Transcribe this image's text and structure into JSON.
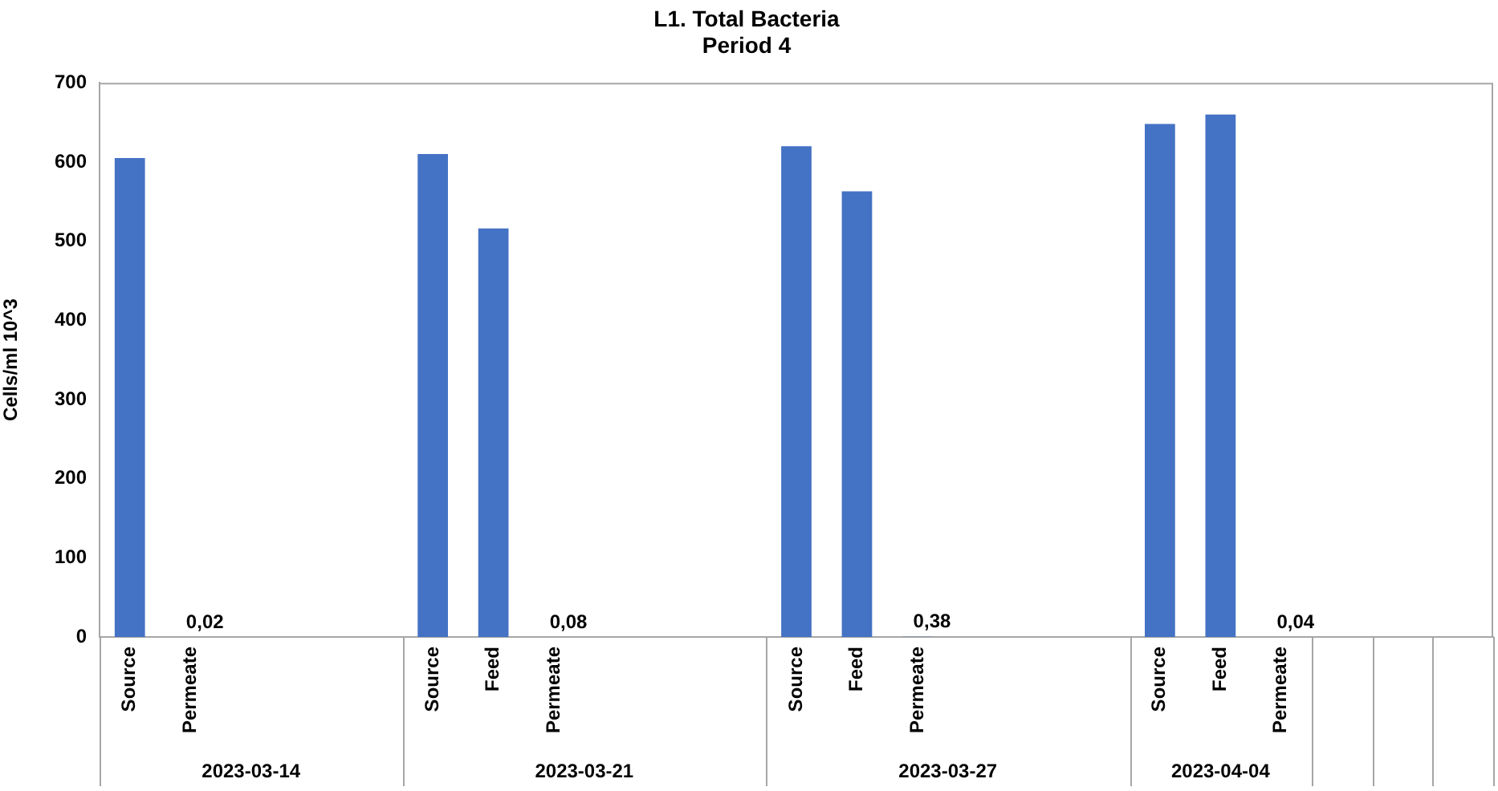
{
  "chart_data": {
    "type": "bar",
    "title": "L1. Total Bacteria",
    "subtitle": "Period 4",
    "ylabel": "Cells/ml 10^3",
    "categories": [
      "Source",
      "Permeate",
      null,
      null,
      null,
      "Source",
      "Feed",
      "Permeate",
      null,
      null,
      null,
      "Source",
      "Feed",
      "Permeate",
      null,
      null,
      null,
      "Source",
      "Feed",
      "Permeate",
      null,
      null,
      null
    ],
    "values": [
      605,
      0.02,
      null,
      null,
      null,
      610,
      516,
      0.08,
      null,
      null,
      null,
      620,
      563,
      0.38,
      null,
      null,
      null,
      648,
      660,
      0.04,
      null,
      null,
      null
    ],
    "value_labels": [
      null,
      "0,02",
      null,
      null,
      null,
      null,
      null,
      "0,08",
      null,
      null,
      null,
      null,
      null,
      "0,38",
      null,
      null,
      null,
      null,
      null,
      "0,04",
      null,
      null,
      null
    ],
    "color": "#4472c4",
    "ylim": [
      0,
      700
    ],
    "yticks": [
      0,
      100,
      200,
      300,
      400,
      500,
      600,
      700
    ],
    "grid": false,
    "legend": false,
    "annotations": [
      "2023-03-14",
      "2023-03-21",
      "2023-03-27",
      "2023-04-04"
    ]
  }
}
